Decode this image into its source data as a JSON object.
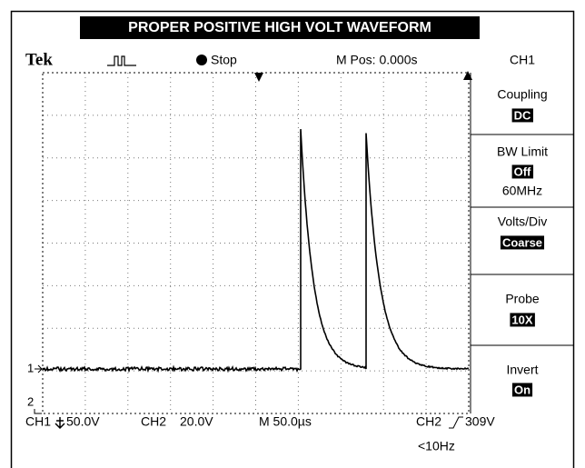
{
  "title": "PROPER POSITIVE HIGH VOLT WAVEFORM",
  "status_bar": {
    "brand": "Tek",
    "run_state": "Stop",
    "position": "M Pos: 0.000s",
    "channel": "CH1"
  },
  "menu": [
    {
      "label": "Coupling",
      "value": "DC"
    },
    {
      "label": "BW Limit",
      "value": "Off",
      "extra": "60MHz"
    },
    {
      "label": "Volts/Div",
      "value": "Coarse"
    },
    {
      "label": "Probe",
      "value": "10X"
    },
    {
      "label": "Invert",
      "value": "On"
    }
  ],
  "markers": [
    "1",
    "2"
  ],
  "readout": {
    "ch1": "CH1",
    "ch1_scale": "50.0V",
    "ch2": "CH2",
    "ch2_scale": "20.0V",
    "timebase": "M 50.0µs",
    "trigger_source": "CH2",
    "trigger_level": "309V",
    "frequency": "<10Hz"
  }
}
